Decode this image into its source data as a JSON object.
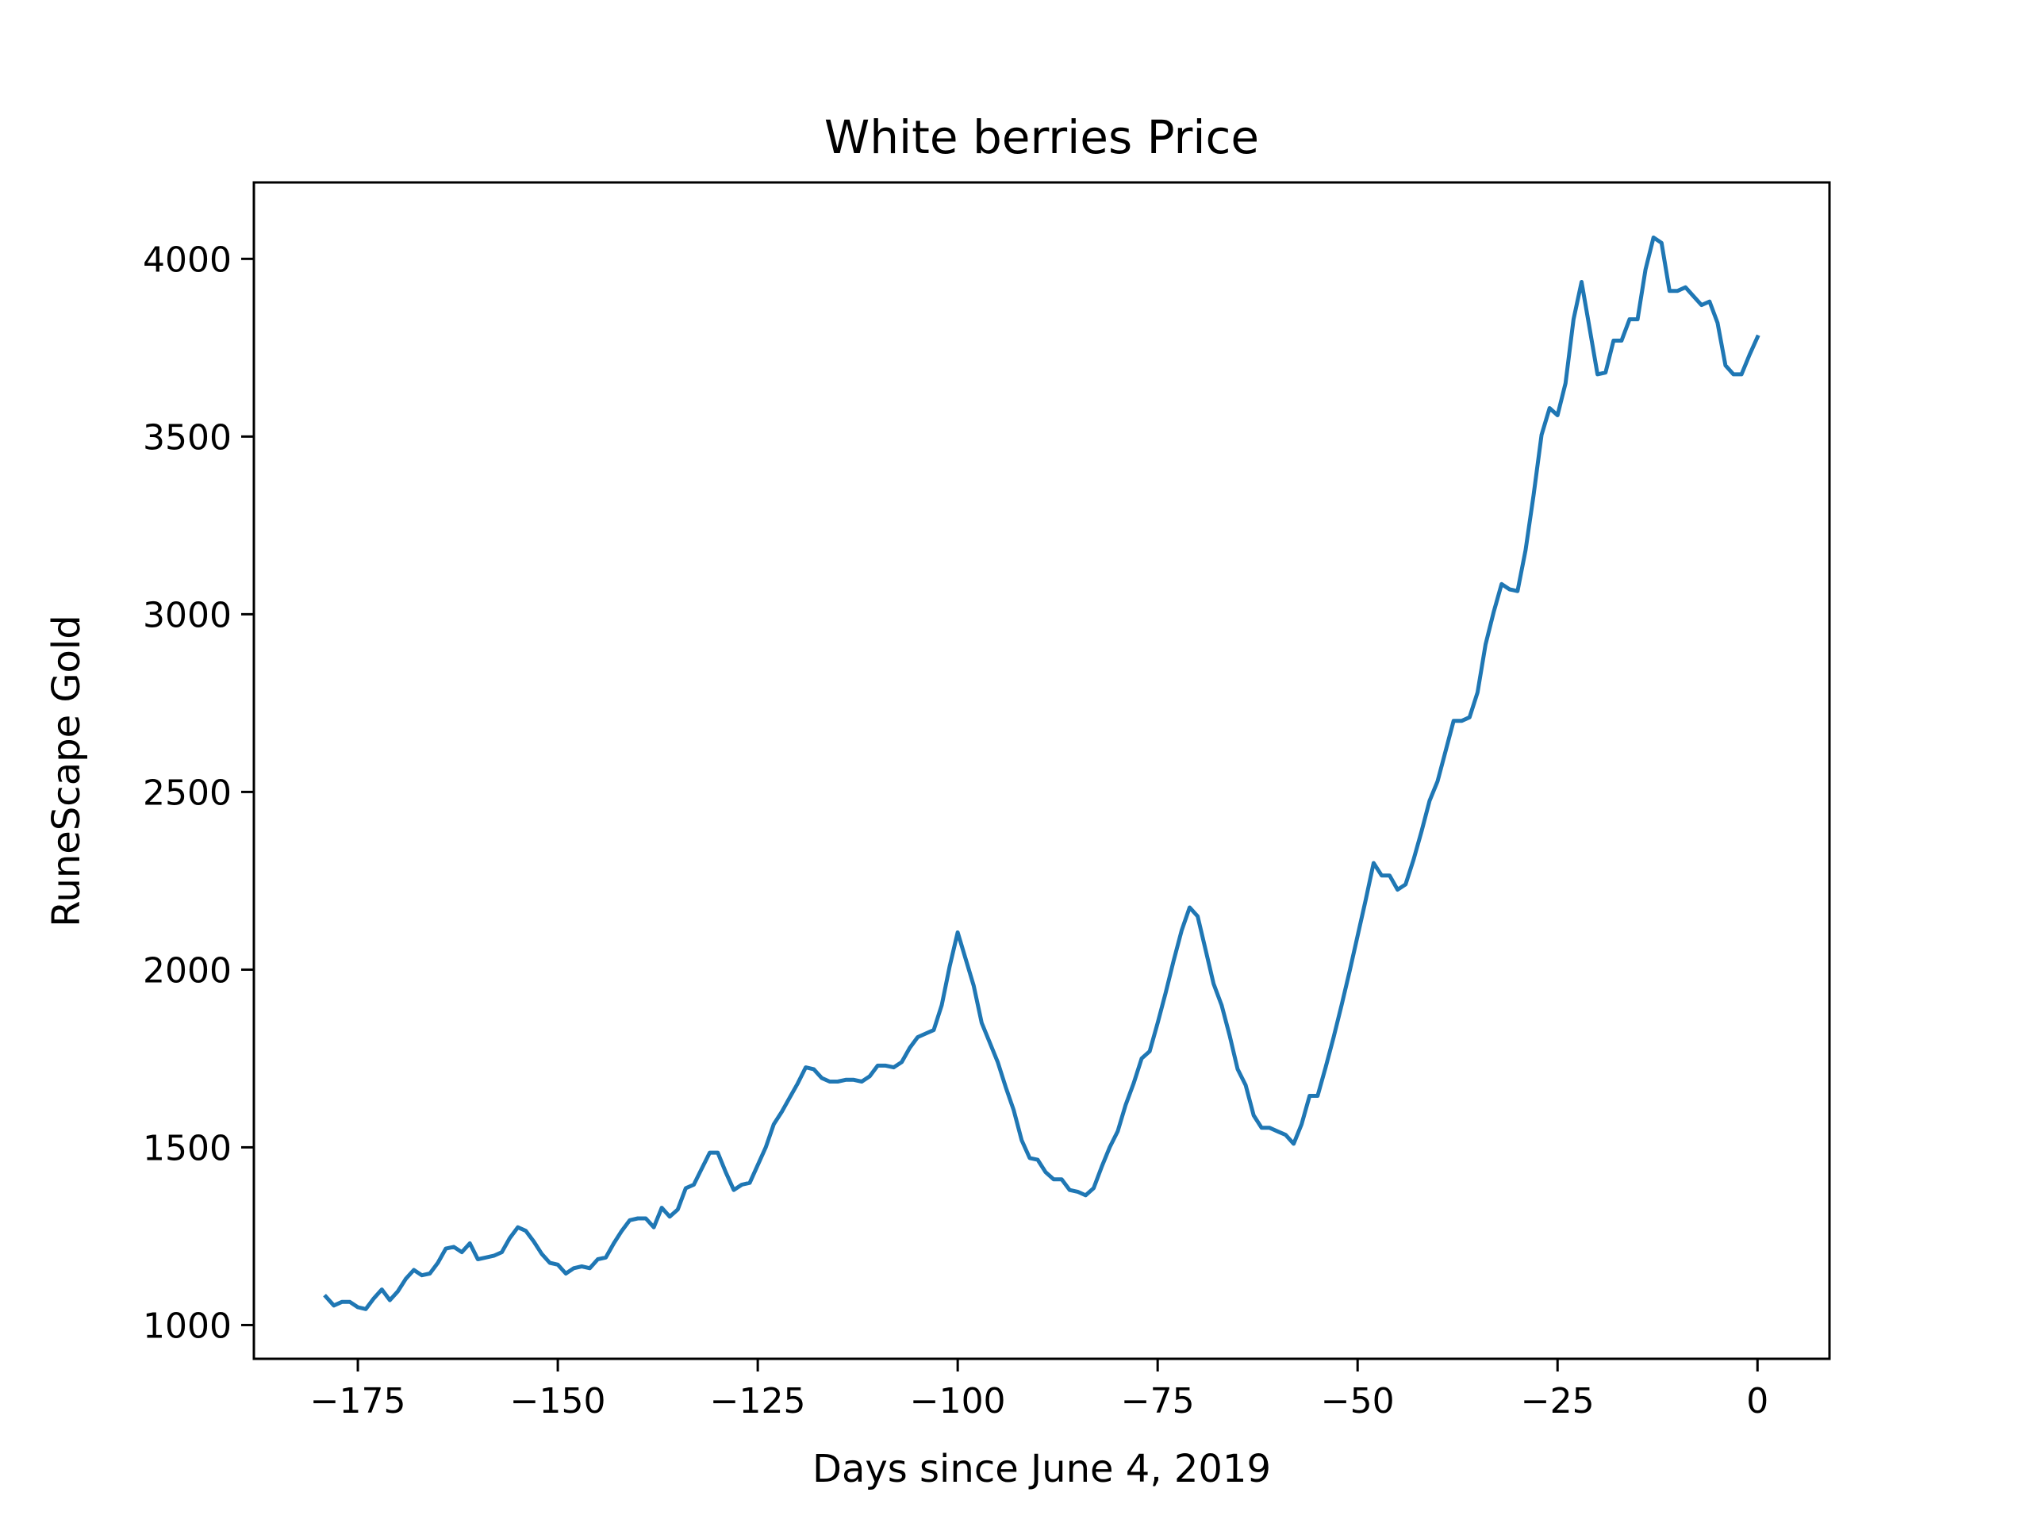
{
  "chart_data": {
    "type": "line",
    "title": "White berries Price",
    "xlabel": "Days since June 4, 2019",
    "ylabel": "RuneScape Gold",
    "xlim": [
      -188,
      9
    ],
    "ylim": [
      905,
      4215
    ],
    "xticks": [
      -175,
      -150,
      -125,
      -100,
      -75,
      -50,
      -25,
      0
    ],
    "xtick_labels": [
      "−175",
      "−150",
      "−125",
      "−100",
      "−75",
      "−50",
      "−25",
      "0"
    ],
    "yticks": [
      1000,
      1500,
      2000,
      2500,
      3000,
      3500,
      4000
    ],
    "ytick_labels": [
      "1000",
      "1500",
      "2000",
      "2500",
      "3000",
      "3500",
      "4000"
    ],
    "grid": false,
    "line_color": "#1f77b4",
    "series": [
      {
        "x": [
          -179,
          -178,
          -177,
          -176,
          -175,
          -174,
          -173,
          -172,
          -171,
          -170,
          -169,
          -168,
          -167,
          -166,
          -165,
          -164,
          -163,
          -162,
          -161,
          -160,
          -159,
          -158,
          -157,
          -156,
          -155,
          -154,
          -153,
          -152,
          -151,
          -150,
          -149,
          -148,
          -147,
          -146,
          -145,
          -144,
          -143,
          -142,
          -141,
          -140,
          -139,
          -138,
          -137,
          -136,
          -135,
          -134,
          -133,
          -132,
          -131,
          -130,
          -129,
          -128,
          -127,
          -126,
          -125,
          -124,
          -123,
          -122,
          -121,
          -120,
          -119,
          -118,
          -117,
          -116,
          -115,
          -114,
          -113,
          -112,
          -111,
          -110,
          -109,
          -108,
          -107,
          -106,
          -105,
          -104,
          -103,
          -102,
          -101,
          -100,
          -99,
          -98,
          -97,
          -96,
          -95,
          -94,
          -93,
          -92,
          -91,
          -90,
          -89,
          -88,
          -87,
          -86,
          -85,
          -84,
          -83,
          -82,
          -81,
          -80,
          -79,
          -78,
          -77,
          -76,
          -75,
          -74,
          -73,
          -72,
          -71,
          -70,
          -69,
          -68,
          -67,
          -66,
          -65,
          -64,
          -63,
          -62,
          -61,
          -60,
          -59,
          -58,
          -57,
          -56,
          -55,
          -54,
          -53,
          -52,
          -51,
          -50,
          -49,
          -48,
          -47,
          -46,
          -45,
          -44,
          -43,
          -42,
          -41,
          -40,
          -39,
          -38,
          -37,
          -36,
          -35,
          -34,
          -33,
          -32,
          -31,
          -30,
          -29,
          -28,
          -27,
          -26,
          -25,
          -24,
          -23,
          -22,
          -21,
          -20,
          -19,
          -18,
          -17,
          -16,
          -15,
          -14,
          -13,
          -12,
          -11,
          -10,
          -9,
          -8,
          -7,
          -6,
          -5,
          -4,
          -3,
          -2,
          -1,
          0
        ],
        "y": [
          1080,
          1055,
          1065,
          1065,
          1050,
          1045,
          1075,
          1100,
          1070,
          1095,
          1130,
          1155,
          1140,
          1145,
          1175,
          1215,
          1220,
          1205,
          1230,
          1185,
          1190,
          1195,
          1205,
          1245,
          1275,
          1265,
          1235,
          1200,
          1175,
          1170,
          1145,
          1160,
          1165,
          1160,
          1185,
          1190,
          1230,
          1265,
          1295,
          1300,
          1300,
          1275,
          1330,
          1305,
          1325,
          1385,
          1395,
          1440,
          1485,
          1485,
          1430,
          1380,
          1395,
          1400,
          1450,
          1500,
          1565,
          1600,
          1640,
          1680,
          1725,
          1720,
          1695,
          1685,
          1685,
          1690,
          1690,
          1685,
          1700,
          1730,
          1730,
          1725,
          1740,
          1780,
          1810,
          1820,
          1830,
          1900,
          2010,
          2105,
          2030,
          1955,
          1850,
          1795,
          1740,
          1670,
          1605,
          1520,
          1470,
          1465,
          1430,
          1410,
          1410,
          1380,
          1375,
          1365,
          1385,
          1445,
          1500,
          1545,
          1620,
          1680,
          1750,
          1770,
          1850,
          1935,
          2025,
          2110,
          2175,
          2150,
          2055,
          1960,
          1900,
          1815,
          1720,
          1675,
          1590,
          1555,
          1555,
          1545,
          1535,
          1510,
          1565,
          1645,
          1645,
          1725,
          1810,
          1900,
          1995,
          2095,
          2195,
          2300,
          2265,
          2265,
          2225,
          2240,
          2310,
          2390,
          2475,
          2530,
          2615,
          2700,
          2700,
          2710,
          2780,
          2915,
          3005,
          3085,
          3070,
          3065,
          3180,
          3335,
          3505,
          3580,
          3560,
          3650,
          3830,
          3935,
          3805,
          3675,
          3680,
          3770,
          3770,
          3830,
          3830,
          3970,
          4060,
          4045,
          3910,
          3910,
          3920,
          3895,
          3870,
          3880,
          3820,
          3700,
          3675,
          3675,
          3730,
          3780
        ]
      }
    ]
  }
}
